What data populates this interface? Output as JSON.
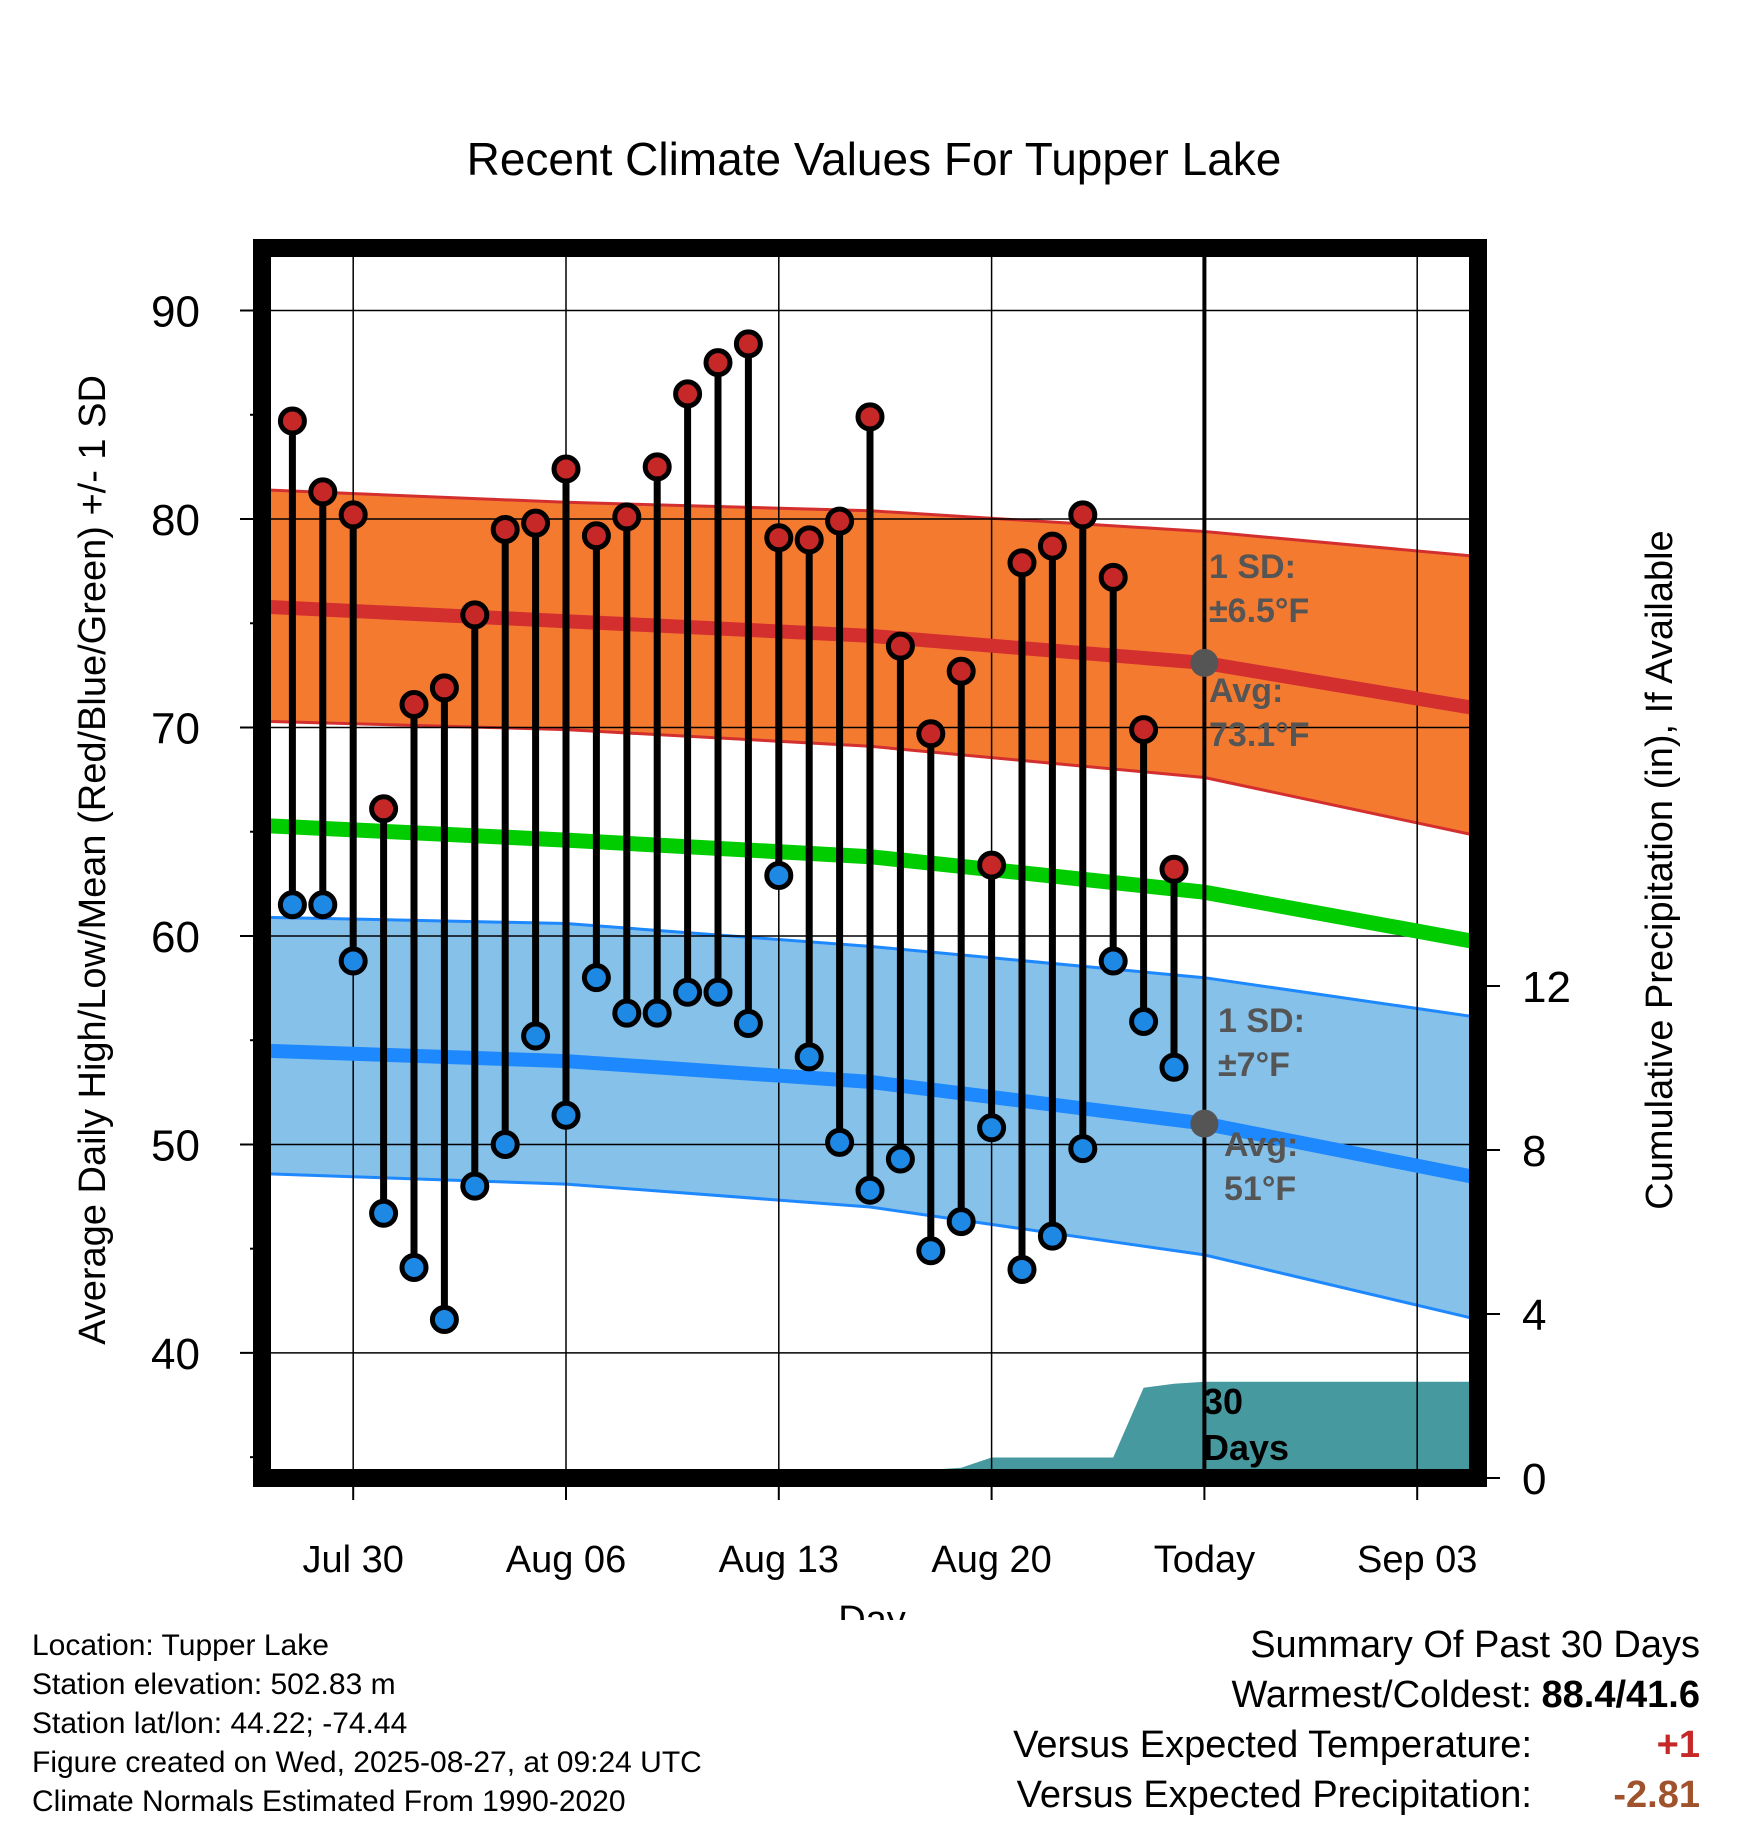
{
  "title": "Recent Climate Values For Tupper Lake",
  "chart_data": {
    "type": "line",
    "title": "Recent Climate Values For Tupper Lake",
    "xlabel": "Day",
    "ylabel": "Average Daily High/Low/Mean (Red/Blue/Green) +/- 1 SD",
    "y2label": "Cumulative Precipitation (in), If Available",
    "ylim": [
      34,
      93
    ],
    "y2lim": [
      0,
      30
    ],
    "yticks": [
      "40",
      "50",
      "60",
      "70",
      "80",
      "90"
    ],
    "y2ticks": [
      "0",
      "4",
      "8",
      "12"
    ],
    "xlim": [
      "2025-07-27",
      "2025-09-05"
    ],
    "xticks": [
      {
        "date": "2025-07-30",
        "label": "Jul 30"
      },
      {
        "date": "2025-08-06",
        "label": "Aug 06"
      },
      {
        "date": "2025-08-13",
        "label": "Aug 13"
      },
      {
        "date": "2025-08-20",
        "label": "Aug 20"
      },
      {
        "date": "2025-08-27",
        "label": "Today"
      },
      {
        "date": "2025-09-03",
        "label": "Sep 03"
      }
    ],
    "grid": true,
    "today": "2025-08-27",
    "observations": {
      "dates": [
        "2025-07-28",
        "2025-07-29",
        "2025-07-30",
        "2025-07-31",
        "2025-08-01",
        "2025-08-02",
        "2025-08-03",
        "2025-08-04",
        "2025-08-05",
        "2025-08-06",
        "2025-08-07",
        "2025-08-08",
        "2025-08-09",
        "2025-08-10",
        "2025-08-11",
        "2025-08-12",
        "2025-08-13",
        "2025-08-14",
        "2025-08-15",
        "2025-08-16",
        "2025-08-17",
        "2025-08-18",
        "2025-08-19",
        "2025-08-20",
        "2025-08-21",
        "2025-08-22",
        "2025-08-23",
        "2025-08-24",
        "2025-08-25",
        "2025-08-26"
      ],
      "highs": [
        84.7,
        81.3,
        80.2,
        66.1,
        71.1,
        71.9,
        75.4,
        79.5,
        79.8,
        82.4,
        79.2,
        80.1,
        82.5,
        86.0,
        87.5,
        88.4,
        79.1,
        79.0,
        79.9,
        84.9,
        73.9,
        69.7,
        72.7,
        63.4,
        77.9,
        78.7,
        80.2,
        77.2,
        69.9,
        63.2
      ],
      "lows": [
        61.5,
        61.5,
        58.8,
        46.7,
        44.1,
        41.6,
        48.0,
        50.0,
        55.2,
        51.4,
        58.0,
        56.3,
        56.3,
        57.3,
        57.3,
        55.8,
        62.9,
        54.2,
        50.1,
        47.8,
        49.3,
        44.9,
        46.3,
        50.8,
        44.0,
        45.6,
        49.8,
        58.8,
        55.9,
        53.7
      ]
    },
    "normals": {
      "dates": [
        "2025-07-27",
        "2025-08-06",
        "2025-08-16",
        "2025-08-27",
        "2025-09-05"
      ],
      "high": [
        75.8,
        75.1,
        74.4,
        73.1,
        70.9
      ],
      "high_band_upper": [
        81.4,
        80.8,
        80.4,
        79.4,
        78.2
      ],
      "high_band_lower": [
        70.3,
        69.9,
        69.1,
        67.6,
        64.8
      ],
      "mean": [
        65.3,
        64.6,
        63.8,
        62.1,
        59.7
      ],
      "low": [
        54.5,
        54.0,
        53.0,
        51.0,
        48.4
      ],
      "low_band_upper": [
        60.9,
        60.6,
        59.5,
        58.0,
        56.1
      ],
      "low_band_lower": [
        48.6,
        48.1,
        47.0,
        44.7,
        41.6
      ]
    },
    "precipitation": {
      "dates": [
        "2025-07-27",
        "2025-08-06",
        "2025-08-10",
        "2025-08-13",
        "2025-08-18",
        "2025-08-19",
        "2025-08-20",
        "2025-08-23",
        "2025-08-24",
        "2025-08-25",
        "2025-08-26",
        "2025-08-27",
        "2025-09-05"
      ],
      "cumulative": [
        0,
        0,
        0,
        0.05,
        0.2,
        0.25,
        0.5,
        0.5,
        0.5,
        2.2,
        2.3,
        2.35,
        2.35
      ]
    },
    "annotations": {
      "high_sd_label": "1 SD:",
      "high_sd_value": "±6.5°F",
      "high_avg_label": "Avg:",
      "high_avg_value": "73.1°F",
      "low_sd_label": "1 SD:",
      "low_sd_value": "±7°F",
      "low_avg_label": "Avg:",
      "low_avg_value": "51°F",
      "precip_label_1": "30",
      "precip_label_2": "Days"
    },
    "colors": {
      "high_band": "#f47a30",
      "high_line": "#d32f2f",
      "mean_line": "#00cc00",
      "low_band": "#85c1e9",
      "low_line": "#1e88ff",
      "precip_fill": "#46999f",
      "high_dot": "#c62828",
      "low_dot": "#1e88e5",
      "today_dot": "#555555",
      "annotation_text": "#555555"
    }
  },
  "footer": {
    "location": "Location: Tupper Lake",
    "elevation": "Station elevation: 502.83 m",
    "latlon": "Station lat/lon: 44.22; -74.44",
    "created": "Figure created on Wed, 2025-08-27, at 09:24 UTC",
    "normals": "Climate Normals Estimated From 1990-2020"
  },
  "summary": {
    "heading": "Summary Of Past 30 Days",
    "warmest_label": "Warmest/Coldest:",
    "warmest_value": "88.4/41.6",
    "temp_label": "Versus Expected Temperature:",
    "temp_value": "+1",
    "precip_label": "Versus Expected Precipitation:",
    "precip_value": "-2.81"
  }
}
